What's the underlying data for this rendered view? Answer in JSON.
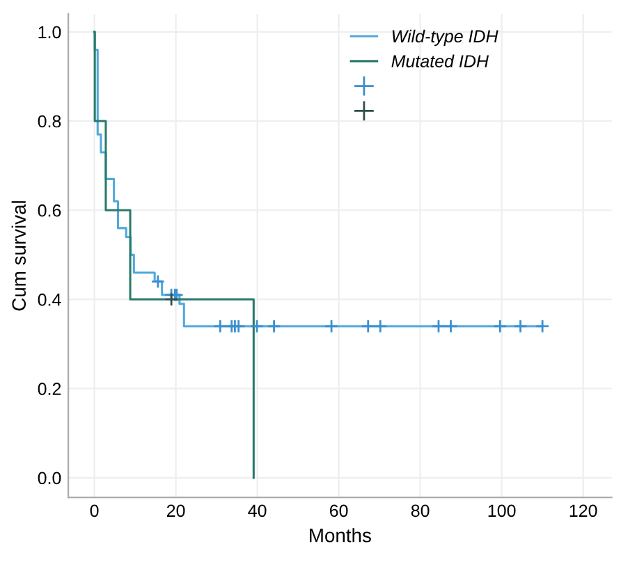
{
  "chart_data": {
    "type": "step",
    "xlabel": "Months",
    "ylabel": "Cum survival",
    "xlim": [
      -6.4,
      127
    ],
    "ylim": [
      -0.044,
      1.04
    ],
    "xticks": [
      0,
      20,
      40,
      60,
      80,
      100,
      120
    ],
    "yticks": [
      {
        "value": 0,
        "label": "0.0"
      },
      0.2,
      0.4,
      0.6,
      0.8,
      {
        "value": 1,
        "label": "1.0"
      }
    ],
    "grid": true,
    "legend": "top right",
    "marker": "none",
    "series": [
      {
        "name": "Wild-type IDH",
        "color": "#4fa8dc",
        "x": [
          0,
          0.1,
          0.8,
          1.6,
          2.8,
          4.8,
          5.8,
          7.8,
          8.9,
          9.7,
          14.8,
          16.6,
          20.9,
          22,
          110
        ],
        "values": [
          1.0,
          0.96,
          0.77,
          0.73,
          0.67,
          0.62,
          0.56,
          0.54,
          0.5,
          0.46,
          0.44,
          0.41,
          0.39,
          0.34,
          0.34
        ]
      },
      {
        "name": "Mutated IDH",
        "color": "#2a7a6c",
        "x": [
          0,
          0.1,
          2.8,
          8.8,
          39.1
        ],
        "values": [
          1.0,
          0.8,
          0.6,
          0.4,
          0.0
        ]
      },
      {
        "type": "scatter",
        "marker": "cross",
        "color": "#3a8fcf",
        "x": [
          15.6,
          18.9,
          19.8,
          20.2,
          30.9,
          33.7,
          34.5,
          35.4,
          39.9,
          44.1,
          58.2,
          67.2,
          70.2,
          84.5,
          87.5,
          99.6,
          104.6,
          110
        ],
        "values": [
          0.44,
          0.41,
          0.41,
          0.41,
          0.34,
          0.34,
          0.34,
          0.34,
          0.34,
          0.34,
          0.34,
          0.34,
          0.34,
          0.34,
          0.34,
          0.34,
          0.34,
          0.34
        ]
      },
      {
        "type": "scatter",
        "marker": "cross",
        "color": "#2f4f4a",
        "x": [
          18.9
        ],
        "values": [
          0.4
        ]
      }
    ]
  }
}
